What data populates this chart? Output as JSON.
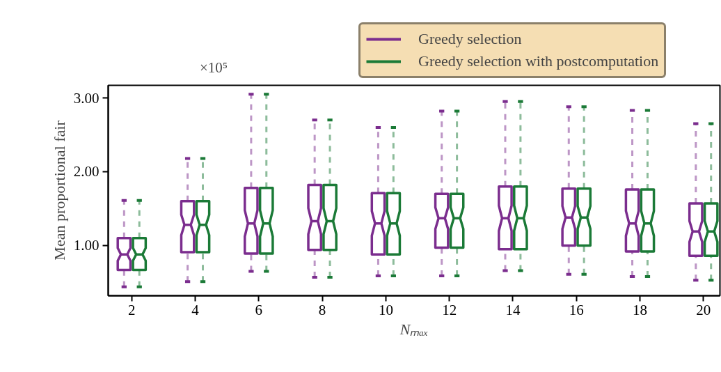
{
  "chart_data": {
    "type": "box",
    "xlabel": "Nₘₐₓ",
    "ylabel": "Mean proportional fair",
    "annotations": [
      "×10⁵"
    ],
    "categories": [
      "2",
      "4",
      "6",
      "8",
      "10",
      "12",
      "14",
      "16",
      "18",
      "20"
    ],
    "ylim": [
      0.32,
      3.17
    ],
    "yticks": [
      {
        "value": 1,
        "label": "1.00"
      },
      {
        "value": 2,
        "label": "2.00"
      },
      {
        "value": 3,
        "label": "3.00"
      }
    ],
    "grid": false,
    "legend": "top right",
    "series": [
      {
        "name": "Greedy selection",
        "color": "#7b2d8e",
        "boxes": [
          {
            "low": 0.44,
            "q1": 0.67,
            "median": 0.88,
            "q3": 1.1,
            "high": 1.61
          },
          {
            "low": 0.51,
            "q1": 0.91,
            "median": 1.28,
            "q3": 1.6,
            "high": 2.18
          },
          {
            "low": 0.65,
            "q1": 0.89,
            "median": 1.3,
            "q3": 1.78,
            "high": 3.05
          },
          {
            "low": 0.57,
            "q1": 0.94,
            "median": 1.33,
            "q3": 1.82,
            "high": 2.7
          },
          {
            "low": 0.59,
            "q1": 0.88,
            "median": 1.3,
            "q3": 1.71,
            "high": 2.6
          },
          {
            "low": 0.59,
            "q1": 0.97,
            "median": 1.37,
            "q3": 1.7,
            "high": 2.82
          },
          {
            "low": 0.66,
            "q1": 0.95,
            "median": 1.37,
            "q3": 1.8,
            "high": 2.95
          },
          {
            "low": 0.61,
            "q1": 1.0,
            "median": 1.38,
            "q3": 1.77,
            "high": 2.88
          },
          {
            "low": 0.58,
            "q1": 0.92,
            "median": 1.3,
            "q3": 1.76,
            "high": 2.83
          },
          {
            "low": 0.53,
            "q1": 0.86,
            "median": 1.19,
            "q3": 1.57,
            "high": 2.65
          }
        ]
      },
      {
        "name": "Greedy selection with postcomputation",
        "color": "#1b7a37",
        "boxes": [
          {
            "low": 0.44,
            "q1": 0.67,
            "median": 0.88,
            "q3": 1.1,
            "high": 1.61
          },
          {
            "low": 0.51,
            "q1": 0.91,
            "median": 1.28,
            "q3": 1.6,
            "high": 2.18
          },
          {
            "low": 0.65,
            "q1": 0.89,
            "median": 1.3,
            "q3": 1.78,
            "high": 3.05
          },
          {
            "low": 0.57,
            "q1": 0.94,
            "median": 1.33,
            "q3": 1.82,
            "high": 2.7
          },
          {
            "low": 0.59,
            "q1": 0.88,
            "median": 1.3,
            "q3": 1.71,
            "high": 2.6
          },
          {
            "low": 0.59,
            "q1": 0.97,
            "median": 1.37,
            "q3": 1.7,
            "high": 2.82
          },
          {
            "low": 0.66,
            "q1": 0.95,
            "median": 1.37,
            "q3": 1.8,
            "high": 2.95
          },
          {
            "low": 0.61,
            "q1": 1.0,
            "median": 1.38,
            "q3": 1.77,
            "high": 2.88
          },
          {
            "low": 0.58,
            "q1": 0.92,
            "median": 1.3,
            "q3": 1.76,
            "high": 2.83
          },
          {
            "low": 0.53,
            "q1": 0.86,
            "median": 1.19,
            "q3": 1.57,
            "high": 2.65
          }
        ]
      }
    ]
  }
}
